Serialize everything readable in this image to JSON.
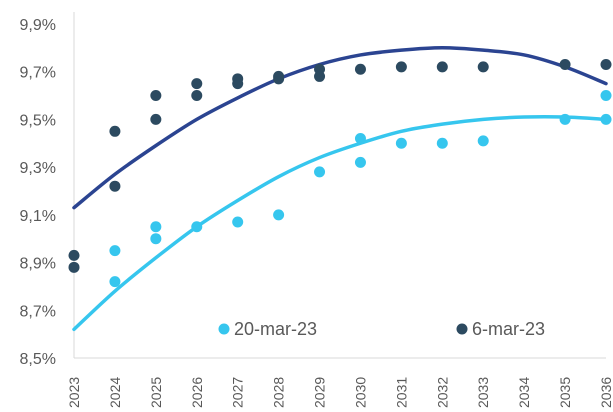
{
  "chart_data": {
    "type": "scatter",
    "x_ticks": [
      "2023",
      "2024",
      "2025",
      "2026",
      "2027",
      "2028",
      "2029",
      "2030",
      "2031",
      "2032",
      "2033",
      "2034",
      "2035",
      "2036"
    ],
    "y_ticks": [
      "8,5%",
      "8,7%",
      "8,9%",
      "9,1%",
      "9,3%",
      "9,5%",
      "9,7%",
      "9,9%"
    ],
    "xlim": [
      2023,
      2036
    ],
    "ylim": [
      8.5,
      9.95
    ],
    "legend_placement": "bottom-inside",
    "series": [
      {
        "name": "20-mar-23",
        "color": "#36C6EE",
        "points": [
          [
            2024,
            8.95
          ],
          [
            2024,
            8.82
          ],
          [
            2025,
            9.05
          ],
          [
            2025,
            9.0
          ],
          [
            2026,
            9.05
          ],
          [
            2027,
            9.07
          ],
          [
            2028,
            9.1
          ],
          [
            2029,
            9.28
          ],
          [
            2030,
            9.42
          ],
          [
            2030,
            9.32
          ],
          [
            2031,
            9.4
          ],
          [
            2032,
            9.4
          ],
          [
            2033,
            9.41
          ],
          [
            2035,
            9.5
          ],
          [
            2036,
            9.6
          ],
          [
            2036,
            9.5
          ]
        ],
        "trend": [
          [
            2023,
            8.62
          ],
          [
            2024,
            8.78
          ],
          [
            2025,
            8.92
          ],
          [
            2026,
            9.05
          ],
          [
            2027,
            9.16
          ],
          [
            2028,
            9.26
          ],
          [
            2029,
            9.34
          ],
          [
            2030,
            9.4
          ],
          [
            2031,
            9.45
          ],
          [
            2032,
            9.48
          ],
          [
            2033,
            9.5
          ],
          [
            2034,
            9.51
          ],
          [
            2035,
            9.51
          ],
          [
            2036,
            9.5
          ]
        ]
      },
      {
        "name": "6-mar-23",
        "color": "#2C4A60",
        "trend_color": "#2B4491",
        "points": [
          [
            2023,
            8.93
          ],
          [
            2023,
            8.88
          ],
          [
            2024,
            9.45
          ],
          [
            2024,
            9.22
          ],
          [
            2025,
            9.6
          ],
          [
            2025,
            9.5
          ],
          [
            2026,
            9.65
          ],
          [
            2026,
            9.6
          ],
          [
            2027,
            9.67
          ],
          [
            2027,
            9.65
          ],
          [
            2028,
            9.68
          ],
          [
            2028,
            9.67
          ],
          [
            2029,
            9.71
          ],
          [
            2029,
            9.68
          ],
          [
            2030,
            9.71
          ],
          [
            2031,
            9.72
          ],
          [
            2032,
            9.72
          ],
          [
            2033,
            9.72
          ],
          [
            2035,
            9.73
          ],
          [
            2036,
            9.73
          ]
        ],
        "trend": [
          [
            2023,
            9.13
          ],
          [
            2024,
            9.27
          ],
          [
            2025,
            9.39
          ],
          [
            2026,
            9.5
          ],
          [
            2027,
            9.59
          ],
          [
            2028,
            9.67
          ],
          [
            2029,
            9.73
          ],
          [
            2030,
            9.77
          ],
          [
            2031,
            9.79
          ],
          [
            2032,
            9.8
          ],
          [
            2033,
            9.79
          ],
          [
            2034,
            9.77
          ],
          [
            2035,
            9.72
          ],
          [
            2036,
            9.65
          ]
        ]
      }
    ]
  }
}
